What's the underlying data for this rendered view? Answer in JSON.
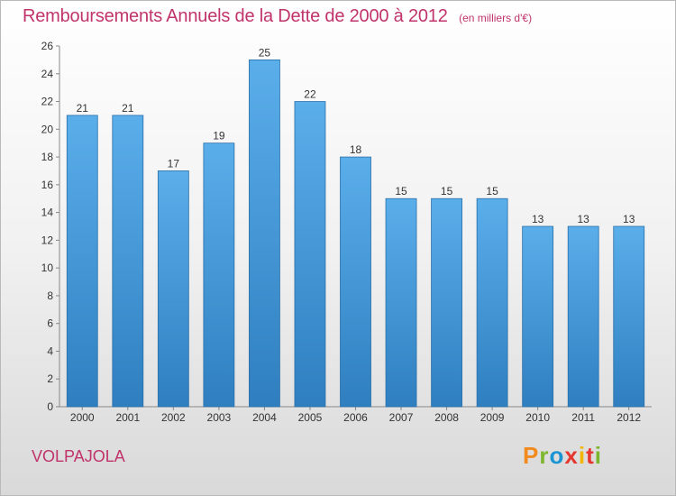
{
  "chart_data": {
    "type": "bar",
    "title": "Remboursements Annuels de la Dette de 2000 à 2012",
    "subtitle": "(en milliers d'€)",
    "xlabel": "",
    "ylabel": "",
    "categories": [
      "2000",
      "2001",
      "2002",
      "2003",
      "2004",
      "2005",
      "2006",
      "2007",
      "2008",
      "2009",
      "2010",
      "2011",
      "2012"
    ],
    "values": [
      21,
      21,
      17,
      19,
      25,
      22,
      18,
      15,
      15,
      15,
      13,
      13,
      13
    ],
    "ylim": [
      0,
      26
    ],
    "yticks": [
      0,
      2,
      4,
      6,
      8,
      10,
      12,
      14,
      16,
      18,
      20,
      22,
      24,
      26
    ],
    "grid": false,
    "data_labels": true,
    "colors": {
      "bar_light": "#5aaeea",
      "bar_dark": "#2f7fc0",
      "title": "#c0346b"
    }
  },
  "footer": {
    "town": "VOLPAJOLA",
    "brand_letters": [
      "P",
      "r",
      "o",
      "x",
      "i",
      "t",
      "i"
    ],
    "brand_colors": [
      "#f28a1e",
      "#7cb62c",
      "#1a94d3",
      "#e5372f",
      "#f2b705",
      "#e5372f",
      "#7cb62c"
    ]
  }
}
